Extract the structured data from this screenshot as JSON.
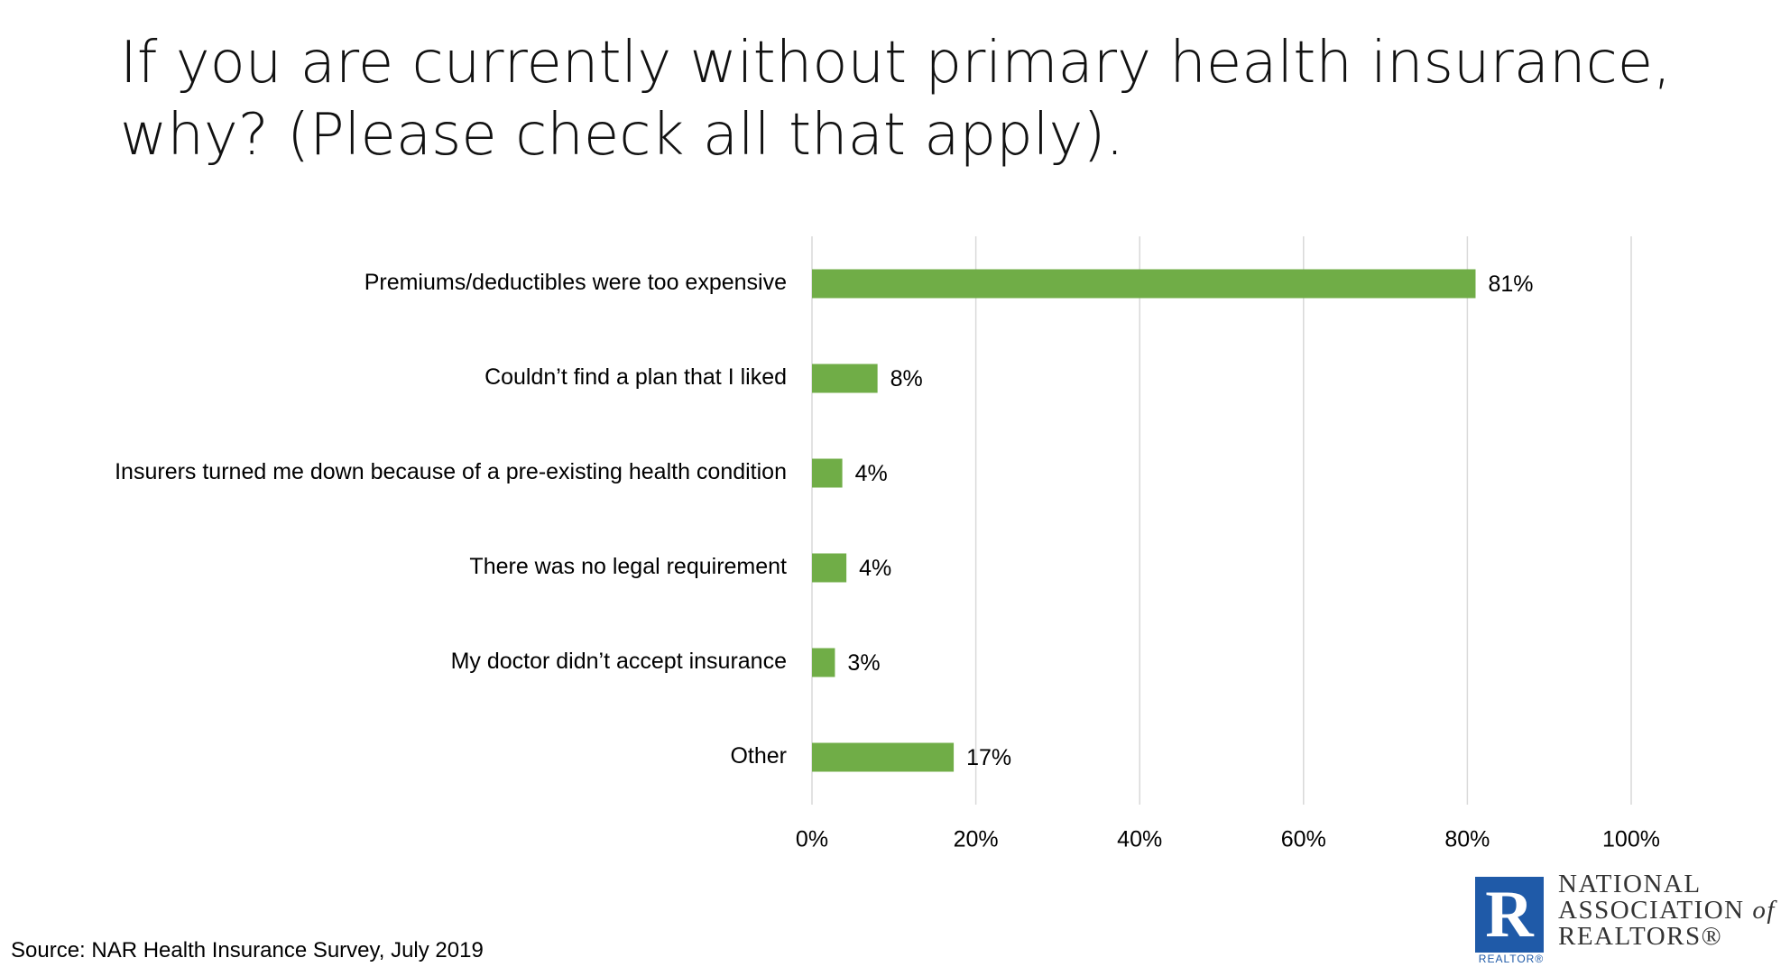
{
  "title": "If you are currently without primary health insurance, why? (Please check all that apply).",
  "source": "Source: NAR Health Insurance Survey, July 2019",
  "logo": {
    "mark": "R",
    "small": "REALTOR®",
    "line1": "NATIONAL",
    "line2_main": "ASSOCIATION",
    "line2_of": "of",
    "line3": "REALTORS®"
  },
  "colors": {
    "bar": "#70ad47",
    "grid": "#d9d9d9"
  },
  "chart_data": {
    "type": "bar",
    "orientation": "horizontal",
    "categories": [
      "Premiums/deductibles were too expensive",
      "Couldn’t find a plan that I liked",
      "Insurers turned me down because of a pre-existing health condition",
      "There was no legal requirement",
      "My doctor didn’t accept insurance",
      "Other"
    ],
    "values": [
      81,
      8,
      3.7,
      4.2,
      2.8,
      17.3
    ],
    "data_labels": [
      "81%",
      "8%",
      "4%",
      "4%",
      "3%",
      "17%"
    ],
    "xlim": [
      0,
      100
    ],
    "xticks": [
      0,
      20,
      40,
      60,
      80,
      100
    ],
    "xtick_labels": [
      "0%",
      "20%",
      "40%",
      "60%",
      "80%",
      "100%"
    ],
    "grid": true,
    "legend": "none"
  }
}
